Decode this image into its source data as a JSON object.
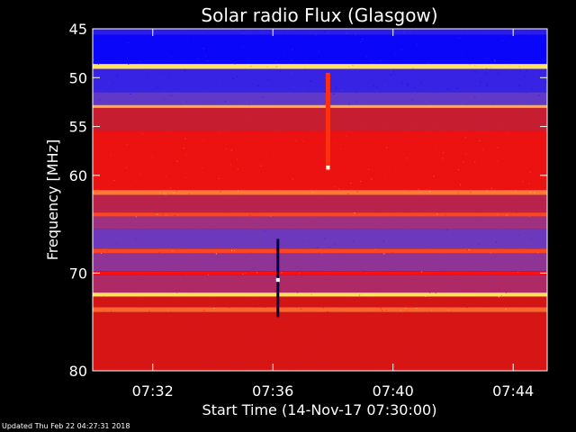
{
  "chart_data": {
    "type": "heatmap",
    "title": "Solar radio Flux (Glasgow)",
    "xlabel": "Start Time (14-Nov-17 07:30:00)",
    "ylabel": "Frequency [MHz]",
    "x_unit": "time",
    "xlim": [
      "07:30:00",
      "07:45:08"
    ],
    "ylim": [
      45,
      80
    ],
    "y_inverted": true,
    "x_ticks": [
      "07:32",
      "07:36",
      "07:40",
      "07:44"
    ],
    "y_ticks": [
      45,
      50,
      55,
      60,
      70,
      80
    ],
    "colormap": [
      "#0000ff",
      "#5a3ad0",
      "#a03080",
      "#d21616",
      "#ff1010",
      "#ffe060"
    ],
    "bands": [
      {
        "from": 45.0,
        "to": 45.6,
        "level": 0.1
      },
      {
        "from": 45.6,
        "to": 48.6,
        "level": 0.02
      },
      {
        "from": 48.6,
        "to": 49.1,
        "level": 1.0
      },
      {
        "from": 49.1,
        "to": 51.5,
        "level": 0.12
      },
      {
        "from": 51.5,
        "to": 52.8,
        "level": 0.22
      },
      {
        "from": 52.8,
        "to": 53.1,
        "level": 0.95
      },
      {
        "from": 53.1,
        "to": 55.5,
        "level": 0.55
      },
      {
        "from": 55.5,
        "to": 61.5,
        "level": 0.72
      },
      {
        "from": 61.5,
        "to": 62.0,
        "level": 0.9
      },
      {
        "from": 62.0,
        "to": 63.8,
        "level": 0.5
      },
      {
        "from": 63.8,
        "to": 64.2,
        "level": 0.85
      },
      {
        "from": 64.2,
        "to": 65.5,
        "level": 0.4
      },
      {
        "from": 65.5,
        "to": 67.5,
        "level": 0.25
      },
      {
        "from": 67.5,
        "to": 68.0,
        "level": 0.85
      },
      {
        "from": 68.0,
        "to": 69.8,
        "level": 0.35
      },
      {
        "from": 69.8,
        "to": 70.2,
        "level": 0.8
      },
      {
        "from": 70.2,
        "to": 72.0,
        "level": 0.45
      },
      {
        "from": 72.0,
        "to": 72.4,
        "level": 1.0
      },
      {
        "from": 72.4,
        "to": 73.5,
        "level": 0.6
      },
      {
        "from": 73.5,
        "to": 74.0,
        "level": 0.88
      },
      {
        "from": 74.0,
        "to": 80.0,
        "level": 0.62
      }
    ],
    "features": [
      {
        "time": "07:36:10",
        "from": 66.5,
        "to": 74.5,
        "kind": "dark-stripe"
      },
      {
        "time": "07:36:10",
        "from": 70.5,
        "to": 70.9,
        "kind": "bright-spot"
      },
      {
        "time": "07:37:50",
        "from": 49.5,
        "to": 59.5,
        "kind": "red-stripe"
      },
      {
        "time": "07:37:50",
        "from": 59.0,
        "to": 59.4,
        "kind": "bright-spot"
      }
    ]
  },
  "footer": {
    "updated": "Updated Thu Feb 22 04:27:31 2018"
  }
}
